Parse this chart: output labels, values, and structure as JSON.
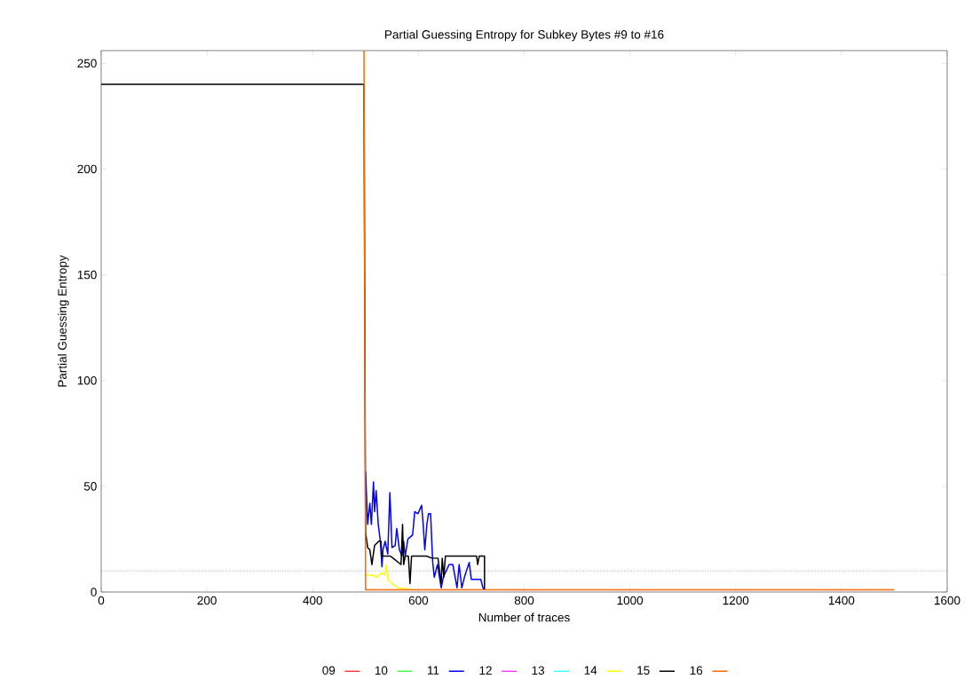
{
  "chart_data": {
    "type": "line",
    "title": "Partial Guessing Entropy for Subkey Bytes #9 to #16",
    "xlabel": "Number of traces",
    "ylabel": "Partial Guessing Entropy",
    "xlim": [
      0,
      1600
    ],
    "xticks": [
      0,
      200,
      400,
      600,
      800,
      1000,
      1200,
      1400,
      1600
    ],
    "ylim": [
      0,
      256
    ],
    "yticks": [
      0,
      50,
      100,
      150,
      200,
      250
    ],
    "grid": false,
    "legend": "bottom",
    "marker": "none",
    "line_style": "solid",
    "ref_lines": [
      {
        "axis": "y",
        "value": 10,
        "color": "#555555",
        "line_style": "dotted"
      }
    ],
    "series": [
      {
        "name": "09",
        "color": "#ff0000"
      },
      {
        "name": "10",
        "color": "#00ff00"
      },
      {
        "name": "11",
        "color": "#0000ff",
        "x": [
          500,
          504,
          508,
          511,
          515,
          517,
          520,
          524,
          528,
          531,
          533,
          537,
          542,
          546,
          550,
          556,
          559,
          564,
          569,
          572,
          575,
          580,
          589,
          593,
          599,
          606,
          609,
          612,
          616,
          619,
          623,
          627,
          630,
          636,
          643,
          647,
          658,
          665,
          673,
          677,
          682,
          687,
          696,
          700,
          718,
          722,
          725
        ],
        "values": [
          57,
          32,
          42,
          32,
          52,
          38,
          48,
          32,
          24,
          12,
          20,
          24,
          18,
          47,
          21,
          22,
          30,
          20,
          17,
          24,
          17,
          25,
          27,
          38,
          37,
          41,
          32,
          20,
          32,
          37,
          37,
          14,
          7,
          13,
          2,
          7,
          13,
          13,
          2,
          13,
          2,
          7,
          14,
          6,
          6,
          2,
          1
        ]
      },
      {
        "name": "12",
        "color": "#ff00ff"
      },
      {
        "name": "13",
        "color": "#00ffff"
      },
      {
        "name": "14",
        "color": "#ffff00",
        "x": [
          500,
          514,
          520,
          531,
          536,
          539,
          542,
          550,
          561,
          592
        ],
        "values": [
          8,
          8,
          7,
          9,
          8,
          13,
          6,
          4,
          2,
          1
        ]
      },
      {
        "name": "15",
        "color": "#000000",
        "x": [
          0,
          497,
          500,
          504,
          508,
          512,
          517,
          525,
          529,
          531,
          547,
          552,
          567,
          570,
          572,
          575,
          581,
          584,
          587,
          592,
          615,
          626,
          637,
          643,
          645,
          648,
          651,
          654,
          710,
          712,
          715,
          725,
          725
        ],
        "values": [
          240,
          240,
          28,
          21,
          20,
          13,
          22,
          24,
          24,
          17,
          17,
          16,
          13,
          32,
          13,
          17,
          17,
          4,
          17,
          17,
          17,
          16,
          16,
          4,
          16,
          7,
          17,
          17,
          17,
          13,
          17,
          17,
          1
        ]
      },
      {
        "name": "16",
        "color": "#ff6600",
        "x": [
          497,
          500,
          1500
        ],
        "values": [
          256,
          1,
          1
        ]
      }
    ]
  }
}
